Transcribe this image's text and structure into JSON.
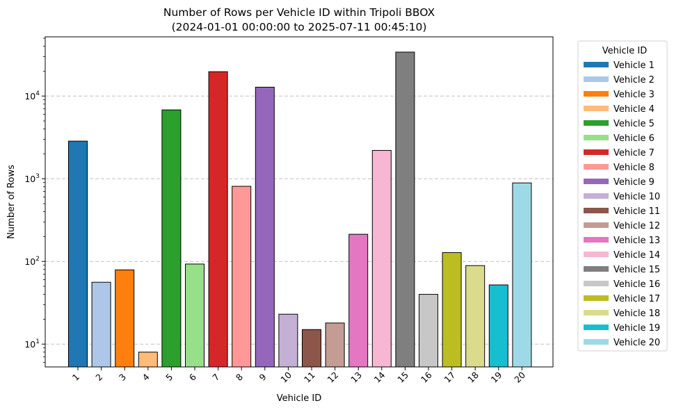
{
  "chart_data": {
    "type": "bar",
    "title": "Number of Rows per Vehicle ID within Tripoli BBOX",
    "subtitle": "(2024-01-01 00:00:00 to 2025-07-11 00:45:10)",
    "xlabel": "Vehicle ID",
    "ylabel": "Number of Rows",
    "yscale": "log",
    "ylim": [
      5.3,
      52000
    ],
    "y_ticks": [
      {
        "value": 10,
        "base": "10",
        "exp": "1"
      },
      {
        "value": 100,
        "base": "10",
        "exp": "2"
      },
      {
        "value": 1000,
        "base": "10",
        "exp": "3"
      },
      {
        "value": 10000,
        "base": "10",
        "exp": "4"
      }
    ],
    "grid": "y-major, dashed",
    "legend_title": "Vehicle ID",
    "legend_position": "outside-right",
    "categories": [
      "1",
      "2",
      "3",
      "4",
      "5",
      "6",
      "7",
      "8",
      "9",
      "10",
      "11",
      "12",
      "13",
      "14",
      "15",
      "16",
      "17",
      "18",
      "19",
      "20"
    ],
    "values": [
      2850,
      56,
      79,
      8,
      6800,
      93,
      19700,
      810,
      12800,
      23,
      15,
      18,
      213,
      2200,
      34000,
      40,
      128,
      89,
      52,
      890
    ],
    "series_names": [
      "Vehicle 1",
      "Vehicle 2",
      "Vehicle 3",
      "Vehicle 4",
      "Vehicle 5",
      "Vehicle 6",
      "Vehicle 7",
      "Vehicle 8",
      "Vehicle 9",
      "Vehicle 10",
      "Vehicle 11",
      "Vehicle 12",
      "Vehicle 13",
      "Vehicle 14",
      "Vehicle 15",
      "Vehicle 16",
      "Vehicle 17",
      "Vehicle 18",
      "Vehicle 19",
      "Vehicle 20"
    ],
    "colors": [
      "#1f77b4",
      "#aec7e8",
      "#ff7f0e",
      "#ffbb78",
      "#2ca02c",
      "#98df8a",
      "#d62728",
      "#ff9896",
      "#9467bd",
      "#c5b0d5",
      "#8c564b",
      "#c49c94",
      "#e377c2",
      "#f7b6d2",
      "#7f7f7f",
      "#c7c7c7",
      "#bcbd22",
      "#dbdb8d",
      "#17becf",
      "#9edae5"
    ]
  }
}
